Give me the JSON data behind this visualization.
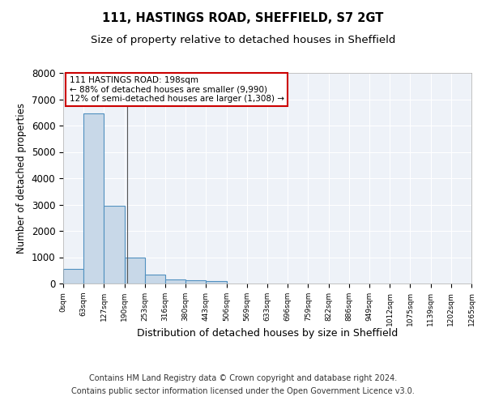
{
  "title1": "111, HASTINGS ROAD, SHEFFIELD, S7 2GT",
  "title2": "Size of property relative to detached houses in Sheffield",
  "xlabel": "Distribution of detached houses by size in Sheffield",
  "ylabel": "Number of detached properties",
  "footer1": "Contains HM Land Registry data © Crown copyright and database right 2024.",
  "footer2": "Contains public sector information licensed under the Open Government Licence v3.0.",
  "bins": [
    "0sqm",
    "63sqm",
    "127sqm",
    "190sqm",
    "253sqm",
    "316sqm",
    "380sqm",
    "443sqm",
    "506sqm",
    "569sqm",
    "633sqm",
    "696sqm",
    "759sqm",
    "822sqm",
    "886sqm",
    "949sqm",
    "1012sqm",
    "1075sqm",
    "1139sqm",
    "1202sqm",
    "1265sqm"
  ],
  "bar_heights": [
    550,
    6450,
    2950,
    990,
    350,
    160,
    120,
    80,
    0,
    0,
    0,
    0,
    0,
    0,
    0,
    0,
    0,
    0,
    0,
    0
  ],
  "bar_color": "#c8d8e8",
  "bar_edge_color": "#5090c0",
  "bg_color": "#eef2f8",
  "grid_color": "#ffffff",
  "ylim": [
    0,
    8000
  ],
  "yticks": [
    0,
    1000,
    2000,
    3000,
    4000,
    5000,
    6000,
    7000,
    8000
  ],
  "property_sqm": 198,
  "annotation_text1": "111 HASTINGS ROAD: 198sqm",
  "annotation_text2": "← 88% of detached houses are smaller (9,990)",
  "annotation_text3": "12% of semi-detached houses are larger (1,308) →",
  "annotation_box_color": "#cc0000",
  "annotation_bg": "#ffffff",
  "bin_width": 63,
  "n_bars": 20
}
